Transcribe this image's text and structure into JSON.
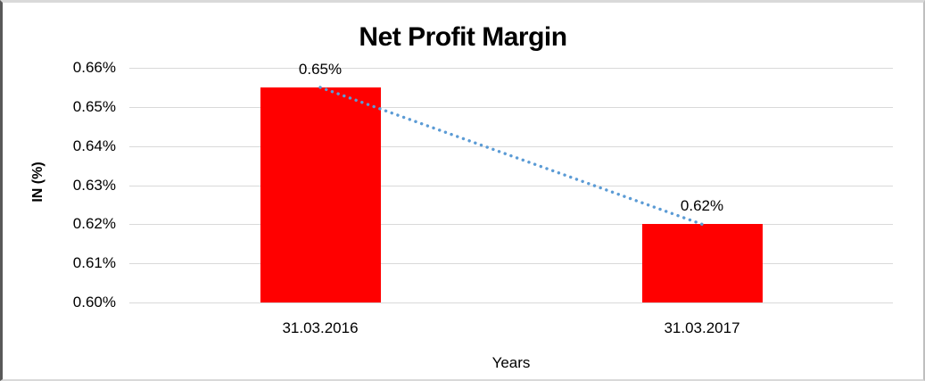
{
  "chart_data": {
    "type": "bar",
    "title": "Net Profit Margin",
    "xlabel": "Years",
    "ylabel": "IN (%)",
    "categories": [
      "31.03.2016",
      "31.03.2017"
    ],
    "series": [
      {
        "name": "Net Profit Margin",
        "values": [
          0.655,
          0.62
        ],
        "data_labels": [
          "0.65%",
          "0.62%"
        ]
      }
    ],
    "ylim": [
      0.6,
      0.66
    ],
    "ytick_labels_top_to_bottom": [
      "0.66%",
      "0.65%",
      "0.64%",
      "0.63%",
      "0.62%",
      "0.61%",
      "0.60%"
    ],
    "grid": "horizontal",
    "legend": "none",
    "colors": {
      "bar": "#ff0000",
      "gridline": "#d9d9d9",
      "trendline": "#5b9bd5",
      "text": "#000000",
      "background": "#ffffff"
    },
    "trendline": {
      "style": "dotted",
      "from_label": "0.65%",
      "to_label": "0.62%"
    }
  }
}
